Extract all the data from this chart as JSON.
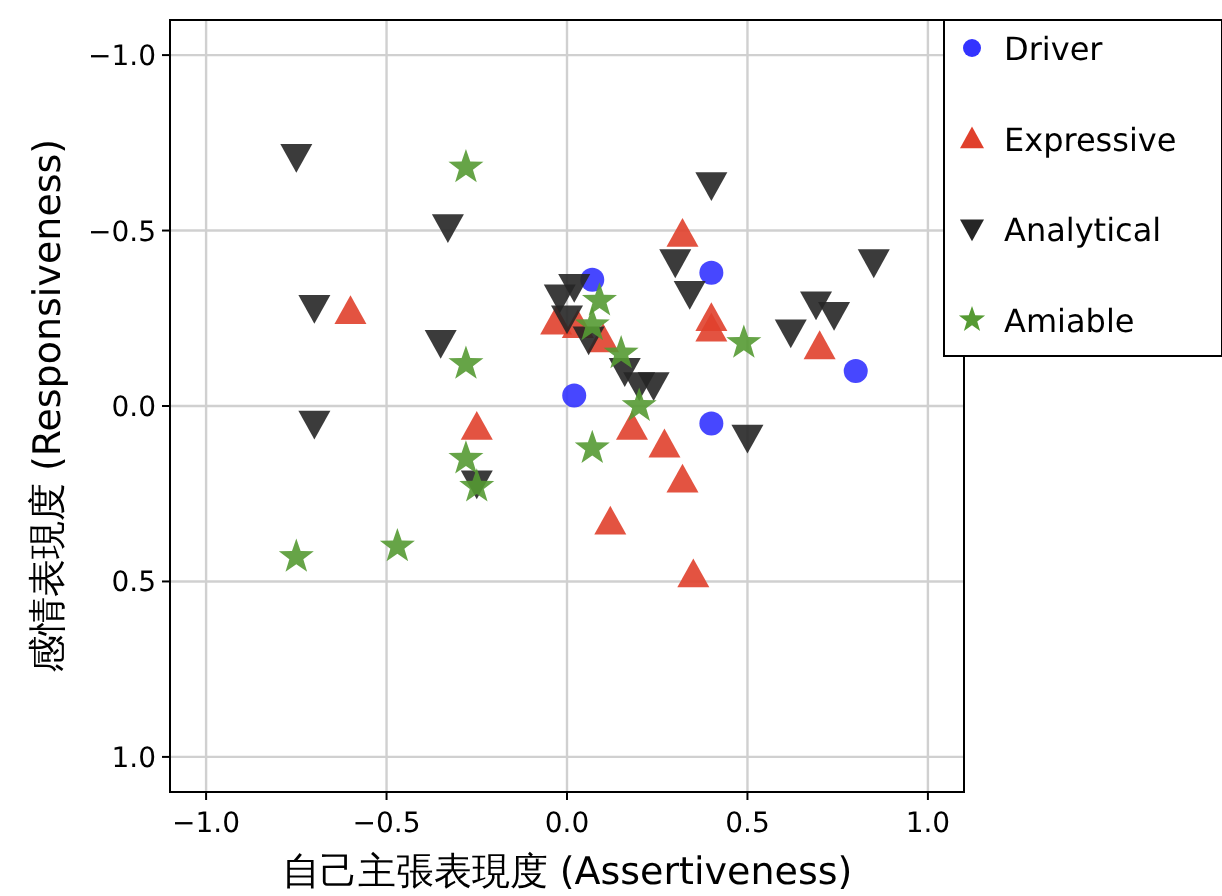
{
  "chart_data": {
    "type": "scatter",
    "xlabel": "自己主張表現度 (Assertiveness)",
    "ylabel": "感情表現度 (Responsiveness)",
    "xlim": [
      -1.1,
      1.1
    ],
    "ylim": [
      1.1,
      -1.1
    ],
    "xticks": [
      {
        "value": -1,
        "label": "−1.0"
      },
      {
        "value": -0.5,
        "label": "−0.5"
      },
      {
        "value": 0,
        "label": "0.0"
      },
      {
        "value": 0.5,
        "label": "0.5"
      },
      {
        "value": 1,
        "label": "1.0"
      }
    ],
    "yticks": [
      {
        "value": -1,
        "label": "−1.0"
      },
      {
        "value": -0.5,
        "label": "−0.5"
      },
      {
        "value": 0,
        "label": "0.0"
      },
      {
        "value": 0.5,
        "label": "0.5"
      },
      {
        "value": 1,
        "label": "1.0"
      }
    ],
    "grid": true,
    "legend": "top right",
    "series": [
      {
        "name": "Driver",
        "color": "#3333ff",
        "marker": "circle",
        "x": [
          0.07,
          0.4,
          0.02,
          0.4,
          0.8
        ],
        "values": [
          -0.36,
          -0.38,
          -0.03,
          0.05,
          -0.1
        ]
      },
      {
        "name": "Expressive",
        "color": "#e0402c",
        "marker": "triangle",
        "x": [
          -0.6,
          -0.25,
          0.32,
          0.4,
          0.4,
          -0.03,
          0.03,
          0.1,
          0.7,
          0.18,
          0.27,
          0.32,
          0.12,
          0.35
        ],
        "values": [
          -0.27,
          0.06,
          -0.49,
          -0.25,
          -0.22,
          -0.24,
          -0.23,
          -0.19,
          -0.17,
          0.06,
          0.11,
          0.21,
          0.33,
          0.48
        ]
      },
      {
        "name": "Analytical",
        "color": "#262626",
        "marker": "triangle-down",
        "x": [
          -0.75,
          -0.33,
          -0.7,
          -0.35,
          -0.7,
          -0.25,
          0.4,
          0.3,
          0.34,
          0.85,
          0.69,
          0.74,
          0.62,
          0.5,
          -0.02,
          0.02,
          0.0,
          0.06,
          0.16,
          0.2,
          0.24
        ],
        "values": [
          -0.71,
          -0.51,
          -0.28,
          -0.18,
          0.05,
          0.22,
          -0.63,
          -0.41,
          -0.32,
          -0.41,
          -0.29,
          -0.26,
          -0.21,
          0.09,
          -0.31,
          -0.34,
          -0.25,
          -0.19,
          -0.1,
          -0.06,
          -0.06
        ]
      },
      {
        "name": "Amiable",
        "color": "#559a33",
        "marker": "star",
        "x": [
          -0.28,
          -0.28,
          -0.28,
          -0.25,
          -0.75,
          -0.47,
          0.09,
          0.07,
          0.15,
          0.2,
          0.49,
          0.07
        ],
        "values": [
          -0.68,
          -0.12,
          0.15,
          0.23,
          0.43,
          0.4,
          -0.3,
          -0.23,
          -0.15,
          0.0,
          -0.18,
          0.12
        ]
      }
    ]
  }
}
